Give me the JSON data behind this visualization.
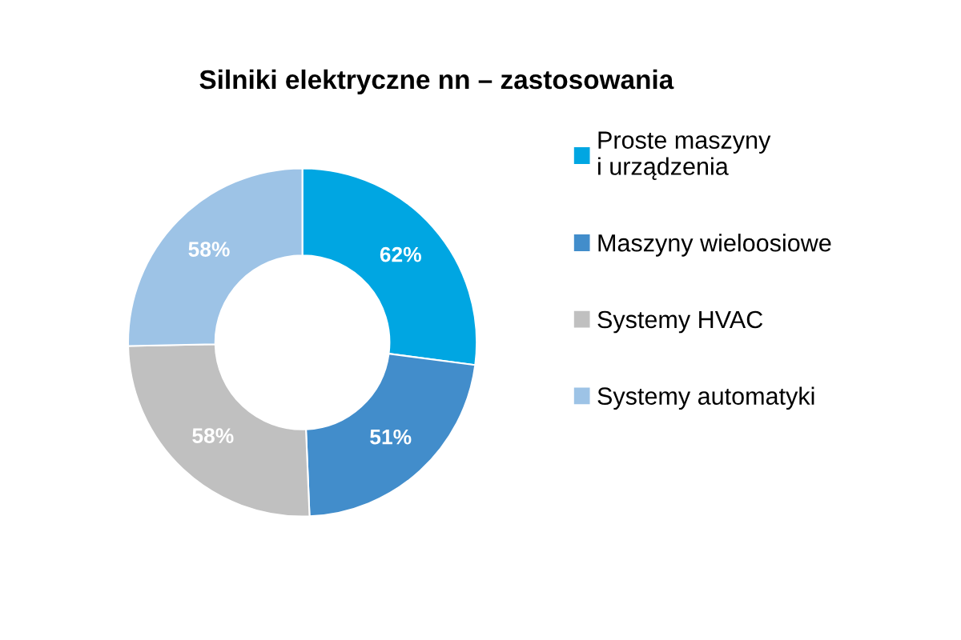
{
  "chart_data": {
    "type": "donut",
    "title": "Silniki elektryczne nn – zastosowania",
    "categories": [
      "Proste maszyny\ni urządzenia",
      "Maszyny wieloosiowe",
      "Systemy HVAC",
      "Systemy automatyki"
    ],
    "values": [
      62,
      51,
      58,
      58
    ],
    "colors": [
      "#00a6e2",
      "#428dcb",
      "#c0c0c0",
      "#9dc3e6"
    ],
    "value_labels": [
      "62%",
      "51%",
      "58%",
      "58%"
    ],
    "legend": "right"
  }
}
